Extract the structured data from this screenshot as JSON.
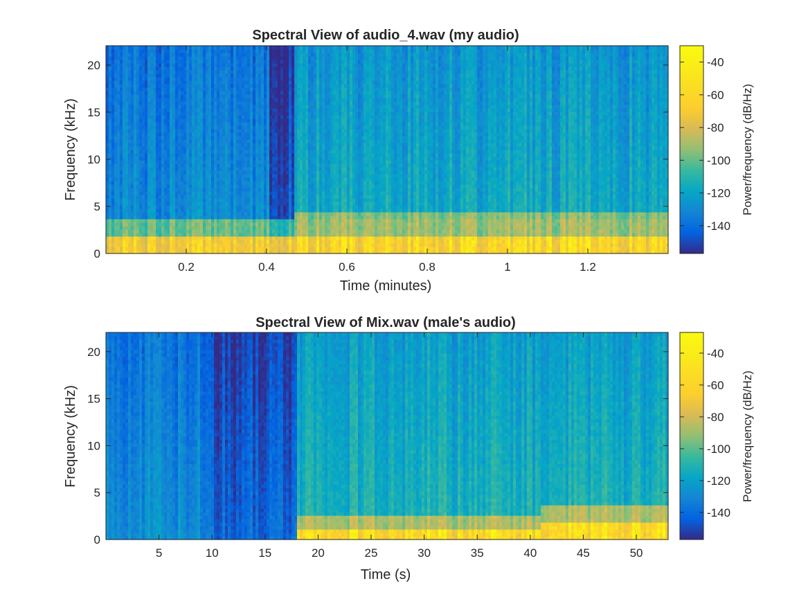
{
  "chart_data": [
    {
      "type": "heatmap",
      "title": "Spectral View of audio_4.wav (my audio)",
      "xlabel": "Time (minutes)",
      "ylabel": "Frequency (kHz)",
      "xlim": [
        0,
        1.4
      ],
      "ylim": [
        0,
        22.05
      ],
      "xticks": [
        "0.2",
        "0.4",
        "0.6",
        "0.8",
        "1",
        "1.2"
      ],
      "xtick_values": [
        0.2,
        0.4,
        0.6,
        0.8,
        1.0,
        1.2
      ],
      "yticks": [
        "0",
        "5",
        "10",
        "15",
        "20"
      ],
      "ytick_values": [
        0,
        5,
        10,
        15,
        20
      ],
      "colorbar": {
        "label": "Power/frequency (dB/Hz)",
        "range": [
          -157,
          -30
        ],
        "ticks": [
          "-40",
          "-60",
          "-80",
          "-100",
          "-120",
          "-140"
        ],
        "tick_values": [
          -40,
          -60,
          -80,
          -100,
          -120,
          -140
        ],
        "colormap": "parula"
      },
      "bands": [
        {
          "t_start": 0.0,
          "t_end": 0.47,
          "description_level": "low",
          "low_freq_kHz": [
            0,
            2
          ],
          "level_dB": -50,
          "background_dB": -120
        },
        {
          "t_start": 0.41,
          "t_end": 0.47,
          "level_dB": -140
        },
        {
          "t_start": 0.47,
          "t_end": 1.4,
          "low_freq_kHz": [
            0,
            2
          ],
          "level_dB": -45,
          "mid_freq_kHz": [
            2.5,
            4.5
          ],
          "mid_level_dB": -80,
          "background_dB": -105
        }
      ]
    },
    {
      "type": "heatmap",
      "title": "Spectral View of Mix.wav (male's audio)",
      "xlabel": "Time (s)",
      "ylabel": "Frequency (kHz)",
      "xlim": [
        0,
        53
      ],
      "ylim": [
        0,
        22.05
      ],
      "xticks": [
        "5",
        "10",
        "15",
        "20",
        "25",
        "30",
        "35",
        "40",
        "45",
        "50"
      ],
      "xtick_values": [
        5,
        10,
        15,
        20,
        25,
        30,
        35,
        40,
        45,
        50
      ],
      "yticks": [
        "0",
        "5",
        "10",
        "15",
        "20"
      ],
      "ytick_values": [
        0,
        5,
        10,
        15,
        20
      ],
      "colorbar": {
        "label": "Power/frequency (dB/Hz)",
        "range": [
          -157,
          -27
        ],
        "ticks": [
          "-40",
          "-60",
          "-80",
          "-100",
          "-120",
          "-140"
        ],
        "tick_values": [
          -40,
          -60,
          -80,
          -100,
          -120,
          -140
        ],
        "colormap": "parula"
      },
      "bands": [
        {
          "t_start": 0,
          "t_end": 9,
          "background_dB": -120
        },
        {
          "t_start": 9,
          "t_end": 18,
          "background_dB": -138
        },
        {
          "t_start": 18,
          "t_end": 35,
          "low_freq_kHz": [
            0,
            1
          ],
          "level_dB": -40,
          "background_dB": -100
        },
        {
          "t_start": 35,
          "t_end": 41,
          "low_freq_kHz": [
            0,
            1
          ],
          "level_dB": -40,
          "background_dB": -100
        },
        {
          "t_start": 41,
          "t_end": 53,
          "low_freq_kHz": [
            0,
            2
          ],
          "level_dB": -40,
          "background_dB": -100
        }
      ]
    }
  ]
}
